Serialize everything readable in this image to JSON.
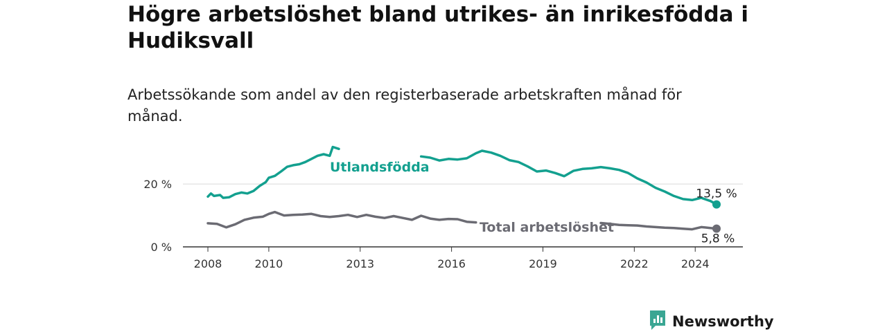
{
  "title": "Högre arbetslöshet bland utrikes- än inrikesfödda i Hudiksvall",
  "subtitle": "Arbetssökande som andel av den registerbaserade arbetskraften månad för månad.",
  "brand": {
    "name": "Newsworthy",
    "icon": "newsworthy-logo-icon",
    "color": "#3aa693"
  },
  "chart_data": {
    "type": "line",
    "title": "Högre arbetslöshet bland utrikes- än inrikesfödda i Hudiksvall",
    "subtitle": "Arbetssökande som andel av den registerbaserade arbetskraften månad för månad.",
    "xlabel": "",
    "ylabel": "",
    "xlim": [
      2008,
      2025
    ],
    "ylim": [
      0,
      35
    ],
    "x_ticks": [
      {
        "value": 2008,
        "label": "2008"
      },
      {
        "value": 2010,
        "label": "2010"
      },
      {
        "value": 2013,
        "label": "2013"
      },
      {
        "value": 2016,
        "label": "2016"
      },
      {
        "value": 2019,
        "label": "2019"
      },
      {
        "value": 2022,
        "label": "2022"
      },
      {
        "value": 2024,
        "label": "2024"
      }
    ],
    "y_ticks": [
      {
        "value": 0,
        "label": "0 %"
      },
      {
        "value": 20,
        "label": "20 %"
      }
    ],
    "grid": true,
    "series": [
      {
        "name": "Utlandsfödda",
        "color": "#13a08f",
        "end_label": "13,5 %",
        "points": [
          [
            2008.0,
            16.0
          ],
          [
            2008.1,
            17.0
          ],
          [
            2008.2,
            16.2
          ],
          [
            2008.4,
            16.5
          ],
          [
            2008.5,
            15.6
          ],
          [
            2008.7,
            15.8
          ],
          [
            2008.9,
            16.8
          ],
          [
            2009.1,
            17.3
          ],
          [
            2009.3,
            17.0
          ],
          [
            2009.5,
            17.8
          ],
          [
            2009.7,
            19.4
          ],
          [
            2009.9,
            20.6
          ],
          [
            2010.0,
            22.0
          ],
          [
            2010.2,
            22.6
          ],
          [
            2010.4,
            24.0
          ],
          [
            2010.6,
            25.5
          ],
          [
            2010.8,
            26.0
          ],
          [
            2011.0,
            26.3
          ],
          [
            2011.2,
            27.0
          ],
          [
            2011.4,
            28.0
          ],
          [
            2011.6,
            29.0
          ],
          [
            2011.8,
            29.5
          ],
          [
            2012.0,
            29.0
          ],
          [
            2012.1,
            31.8
          ],
          [
            2012.3,
            31.2
          ],
          [
            2015.0,
            28.8
          ],
          [
            2015.3,
            28.4
          ],
          [
            2015.6,
            27.5
          ],
          [
            2015.9,
            28.0
          ],
          [
            2016.2,
            27.8
          ],
          [
            2016.5,
            28.2
          ],
          [
            2016.8,
            29.8
          ],
          [
            2017.0,
            30.6
          ],
          [
            2017.3,
            30.0
          ],
          [
            2017.6,
            29.0
          ],
          [
            2017.9,
            27.6
          ],
          [
            2018.2,
            27.0
          ],
          [
            2018.5,
            25.6
          ],
          [
            2018.8,
            24.0
          ],
          [
            2019.1,
            24.3
          ],
          [
            2019.4,
            23.5
          ],
          [
            2019.7,
            22.5
          ],
          [
            2020.0,
            24.2
          ],
          [
            2020.3,
            24.8
          ],
          [
            2020.6,
            25.0
          ],
          [
            2020.9,
            25.4
          ],
          [
            2021.2,
            25.0
          ],
          [
            2021.5,
            24.5
          ],
          [
            2021.8,
            23.5
          ],
          [
            2022.1,
            21.8
          ],
          [
            2022.4,
            20.5
          ],
          [
            2022.7,
            18.8
          ],
          [
            2023.0,
            17.6
          ],
          [
            2023.3,
            16.2
          ],
          [
            2023.6,
            15.2
          ],
          [
            2023.9,
            14.9
          ],
          [
            2024.2,
            15.6
          ],
          [
            2024.5,
            14.6
          ],
          [
            2024.7,
            13.5
          ]
        ]
      },
      {
        "name": "Total arbetslöshet",
        "color": "#6b6b73",
        "end_label": "5,8 %",
        "points": [
          [
            2008.0,
            7.5
          ],
          [
            2008.3,
            7.3
          ],
          [
            2008.6,
            6.2
          ],
          [
            2008.9,
            7.2
          ],
          [
            2009.2,
            8.6
          ],
          [
            2009.5,
            9.3
          ],
          [
            2009.8,
            9.6
          ],
          [
            2010.0,
            10.5
          ],
          [
            2010.2,
            11.1
          ],
          [
            2010.5,
            10.0
          ],
          [
            2010.8,
            10.2
          ],
          [
            2011.1,
            10.3
          ],
          [
            2011.4,
            10.5
          ],
          [
            2011.7,
            9.8
          ],
          [
            2012.0,
            9.5
          ],
          [
            2012.3,
            9.8
          ],
          [
            2012.6,
            10.2
          ],
          [
            2012.9,
            9.5
          ],
          [
            2013.2,
            10.2
          ],
          [
            2013.5,
            9.6
          ],
          [
            2013.8,
            9.2
          ],
          [
            2014.1,
            9.8
          ],
          [
            2014.4,
            9.2
          ],
          [
            2014.7,
            8.6
          ],
          [
            2015.0,
            9.9
          ],
          [
            2015.3,
            9.0
          ],
          [
            2015.6,
            8.6
          ],
          [
            2015.9,
            8.9
          ],
          [
            2016.2,
            8.8
          ],
          [
            2016.5,
            8.0
          ],
          [
            2016.8,
            7.8
          ],
          [
            2020.9,
            7.6
          ],
          [
            2021.2,
            7.3
          ],
          [
            2021.5,
            7.0
          ],
          [
            2021.8,
            6.9
          ],
          [
            2022.1,
            6.8
          ],
          [
            2022.4,
            6.5
          ],
          [
            2022.7,
            6.3
          ],
          [
            2023.0,
            6.1
          ],
          [
            2023.3,
            6.0
          ],
          [
            2023.6,
            5.8
          ],
          [
            2023.9,
            5.6
          ],
          [
            2024.2,
            6.3
          ],
          [
            2024.5,
            6.0
          ],
          [
            2024.7,
            5.8
          ]
        ]
      }
    ]
  }
}
